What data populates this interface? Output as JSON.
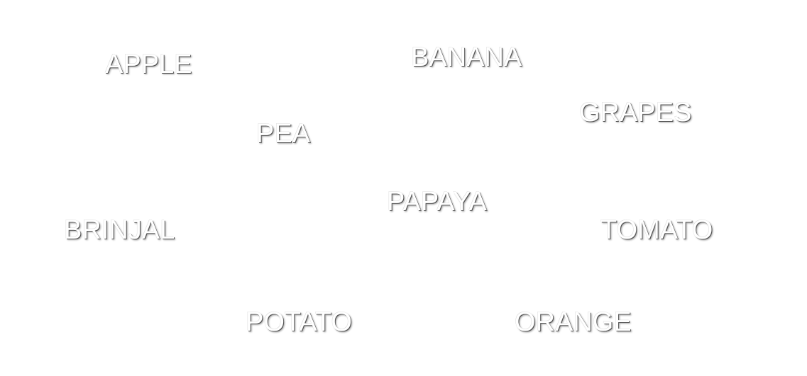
{
  "words": {
    "apple": "APPLE",
    "banana": "BANANA",
    "grapes": "GRAPES",
    "pea": "PEA",
    "papaya": "PAPAYA",
    "brinjal": "BRINJAL",
    "tomato": "TOMATO",
    "potato": "POTATO",
    "orange": "ORANGE"
  }
}
